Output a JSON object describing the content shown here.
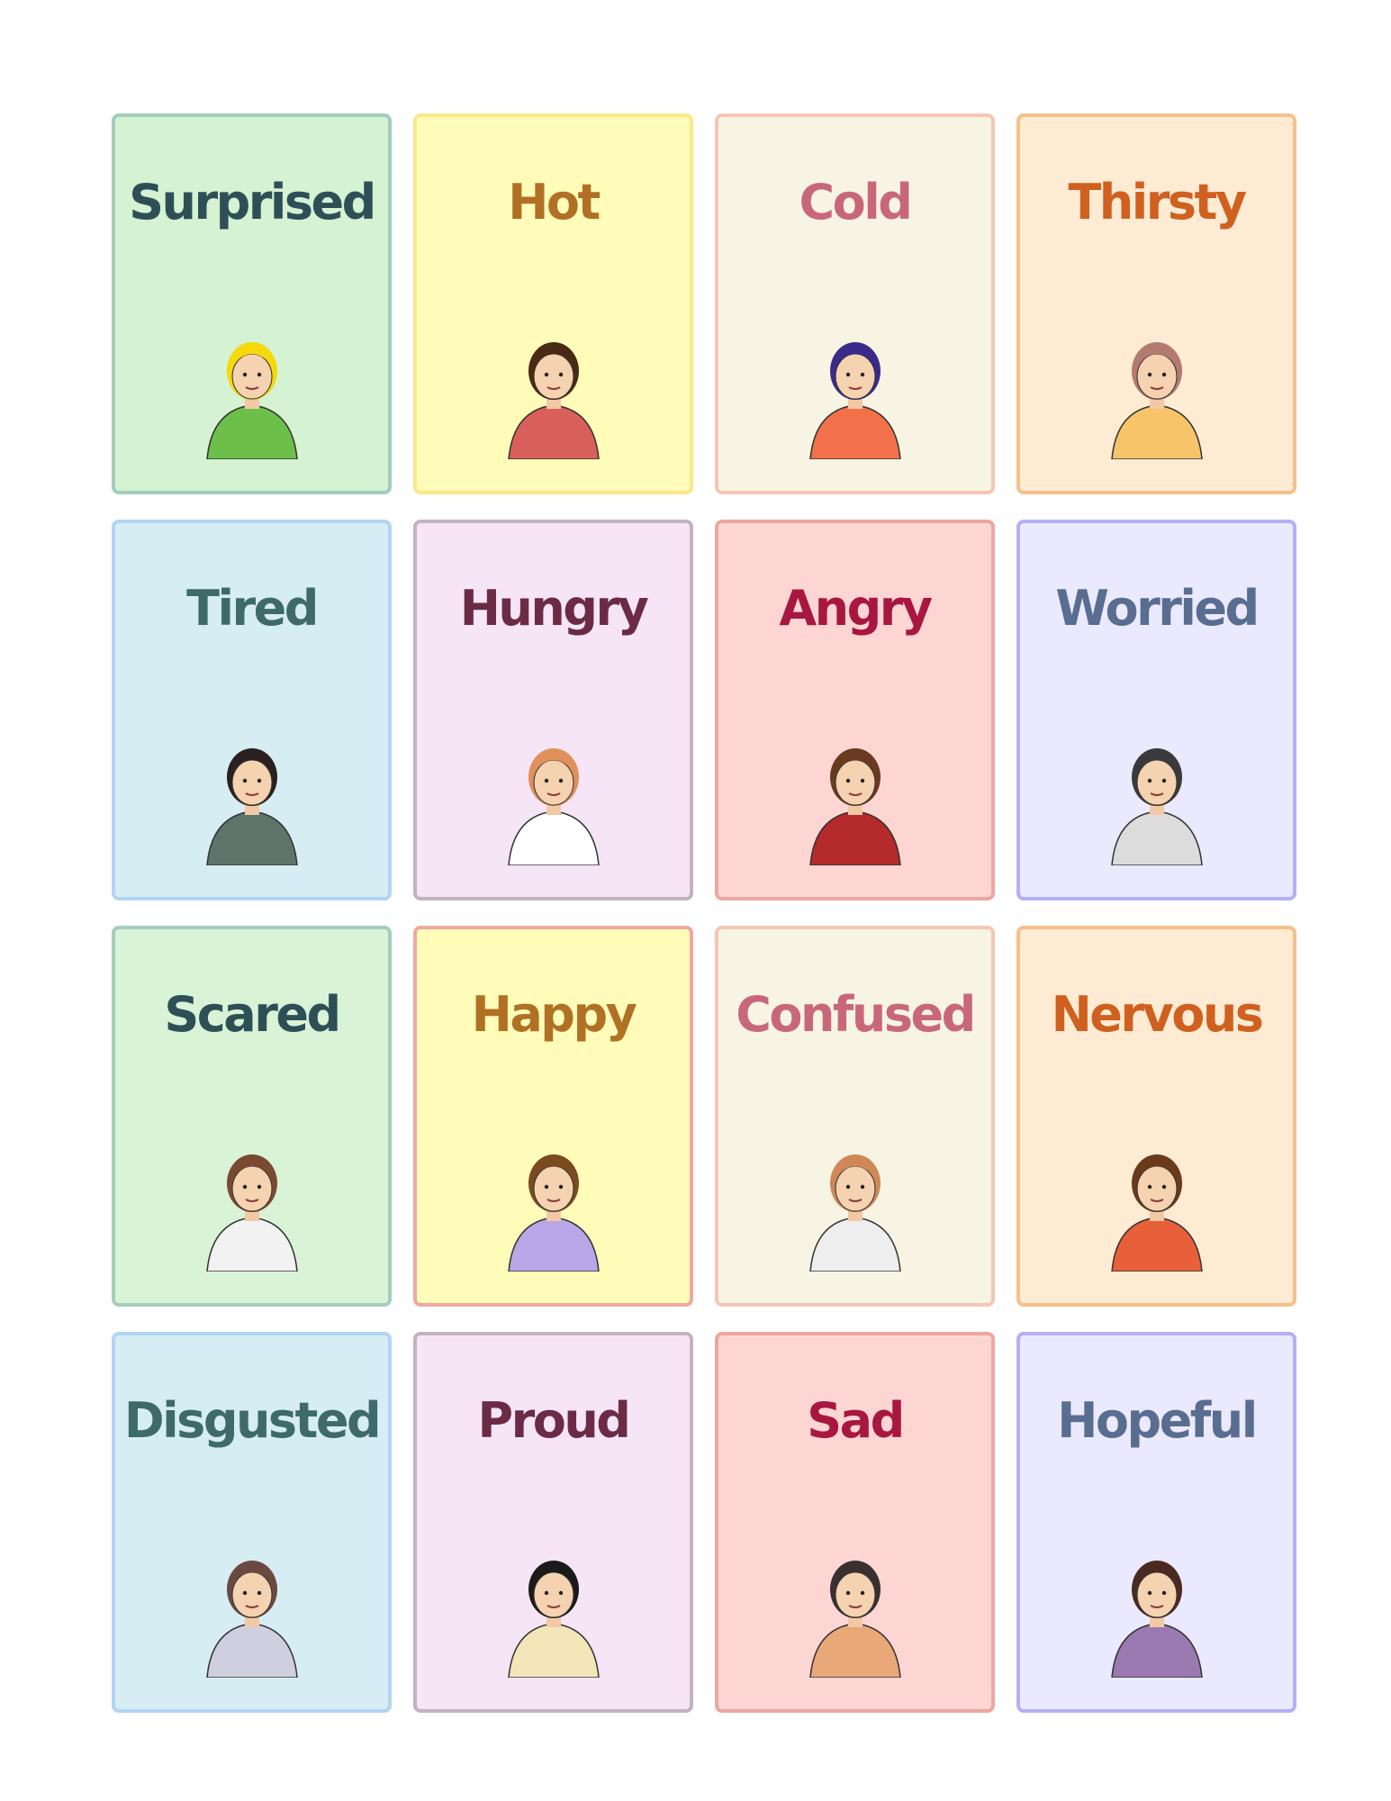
{
  "cards": [
    {
      "label": "Surprised",
      "bg": "#d5f2d3",
      "border": "#a3cdbd",
      "text": "#2f4f57",
      "icon": "surprised-woman",
      "hair": "#f5d90a",
      "shirt": "#6cc04a"
    },
    {
      "label": "Hot",
      "bg": "#fefcb8",
      "border": "#fde68a",
      "text": "#b07125",
      "icon": "sweating-man",
      "hair": "#4a2a14",
      "shirt": "#d9605a"
    },
    {
      "label": "Cold",
      "bg": "#f7f4e3",
      "border": "#f5c6b5",
      "text": "#c9677a",
      "icon": "shivering-boy",
      "hair": "#3a2a8a",
      "shirt": "#f2714a"
    },
    {
      "label": "Thirsty",
      "bg": "#fdebd3",
      "border": "#f6c08a",
      "text": "#d0601f",
      "icon": "drinking-girl",
      "hair": "#b27a70",
      "shirt": "#f7c46a"
    },
    {
      "label": "Tired",
      "bg": "#d6edf3",
      "border": "#b2d4f5",
      "text": "#3e6b6a",
      "icon": "tired-man",
      "hair": "#2a2020",
      "shirt": "#5e7468"
    },
    {
      "label": "Hungry",
      "bg": "#f5e5f6",
      "border": "#c4b2c0",
      "text": "#6b2b44",
      "icon": "eating-girl",
      "hair": "#e0905a",
      "shirt": "#ffffff"
    },
    {
      "label": "Angry",
      "bg": "#fdd6d4",
      "border": "#eca7a0",
      "text": "#a8173f",
      "icon": "angry-man",
      "hair": "#6a3a20",
      "shirt": "#b52a2a"
    },
    {
      "label": "Worried",
      "bg": "#ebe9fd",
      "border": "#b4b0f5",
      "text": "#586d8f",
      "icon": "worried-man",
      "hair": "#3a3a3a",
      "shirt": "#dcdcdc"
    },
    {
      "label": "Scared",
      "bg": "#d9f3d7",
      "border": "#a3cdbd",
      "text": "#2f4f57",
      "icon": "scared-woman",
      "hair": "#7a4a30",
      "shirt": "#f2f2f2"
    },
    {
      "label": "Happy",
      "bg": "#fefcb8",
      "border": "#f0a8a0",
      "text": "#b07125",
      "icon": "jumping-girl",
      "hair": "#7a4a20",
      "shirt": "#b8a8e8"
    },
    {
      "label": "Confused",
      "bg": "#f7f4e3",
      "border": "#f5c6b5",
      "text": "#c9677a",
      "icon": "confused-woman",
      "hair": "#d08858",
      "shirt": "#eeeeee"
    },
    {
      "label": "Nervous",
      "bg": "#fdebd3",
      "border": "#f6c08a",
      "text": "#d0601f",
      "icon": "nervous-boy",
      "hair": "#6a3a1a",
      "shirt": "#e8603a"
    },
    {
      "label": "Disgusted",
      "bg": "#d6edf3",
      "border": "#b2d4f5",
      "text": "#3e6b6a",
      "icon": "disgusted-woman",
      "hair": "#6a4a40",
      "shirt": "#cfcfe0"
    },
    {
      "label": "Proud",
      "bg": "#f5e5f6",
      "border": "#c4b2c0",
      "text": "#6b2b44",
      "icon": "proud-woman",
      "hair": "#1a1a1a",
      "shirt": "#f3e6b8"
    },
    {
      "label": "Sad",
      "bg": "#fdd6d4",
      "border": "#eca7a0",
      "text": "#a8173f",
      "icon": "sad-man",
      "hair": "#3a3030",
      "shirt": "#e8a878"
    },
    {
      "label": "Hopeful",
      "bg": "#ebe9fd",
      "border": "#b4b0f5",
      "text": "#586d8f",
      "icon": "hopeful-girl",
      "hair": "#4a2a20",
      "shirt": "#9a7ab0"
    }
  ]
}
